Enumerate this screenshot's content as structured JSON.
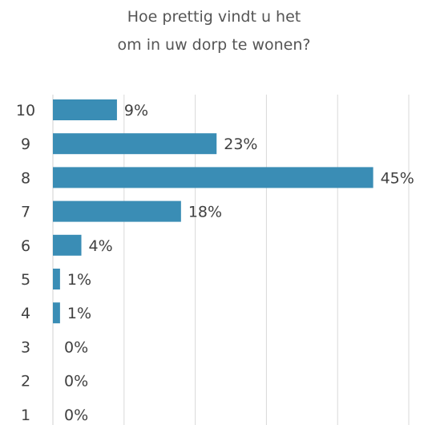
{
  "chart_data": {
    "type": "bar",
    "orientation": "horizontal",
    "title_lines": [
      "Hoe prettig vindt u het",
      "om in uw dorp te wonen?"
    ],
    "categories": [
      "10",
      "9",
      "8",
      "7",
      "6",
      "5",
      "4",
      "3",
      "2",
      "1"
    ],
    "values": [
      9,
      23,
      45,
      18,
      4,
      1,
      1,
      0,
      0,
      0
    ],
    "value_labels": [
      "9%",
      "23%",
      "45%",
      "18%",
      "4%",
      "1%",
      "1%",
      "0%",
      "0%",
      "0%"
    ],
    "unit": "%",
    "xlim": [
      0,
      50
    ],
    "grid": true,
    "legend": "none",
    "bar_color": "#3a8db5",
    "grid_color": "#d9d9d9",
    "text_color": "#404040"
  }
}
